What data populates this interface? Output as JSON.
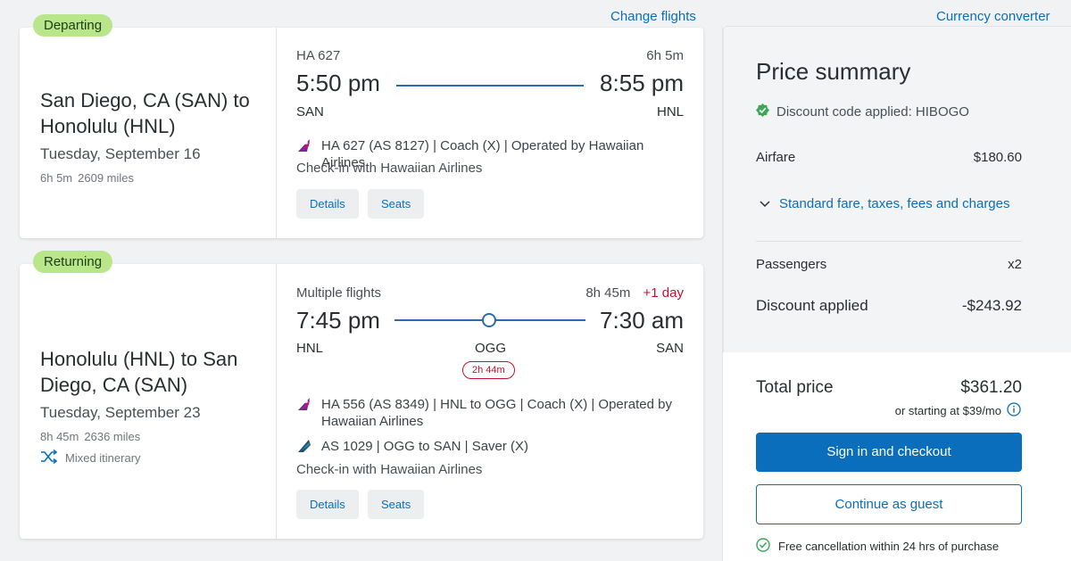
{
  "links": {
    "change_flights": "Change flights",
    "currency_converter": "Currency converter"
  },
  "departing": {
    "pill": "Departing",
    "route": "San Diego, CA (SAN) to Honolulu (HNL)",
    "date": "Tuesday, September 16",
    "duration": "6h 5m",
    "miles": "2609 miles",
    "flight_label": "HA 627",
    "total_duration": "6h 5m",
    "depart_time": "5:50 pm",
    "arrive_time": "8:55 pm",
    "origin": "SAN",
    "destination": "HNL",
    "segment": "HA 627 (AS 8127) | Coach (X) | Operated by Hawaiian Airlines",
    "checkin": "Check-in with Hawaiian Airlines",
    "details_btn": "Details",
    "seats_btn": "Seats"
  },
  "returning": {
    "pill": "Returning",
    "route": "Honolulu (HNL) to San Diego, CA (SAN)",
    "date": "Tuesday, September 23",
    "duration": "8h 45m",
    "miles": "2636 miles",
    "mixed": "Mixed itinerary",
    "flight_label": "Multiple flights",
    "total_duration": "8h 45m",
    "plus_day": "+1 day",
    "depart_time": "7:45 pm",
    "arrive_time": "7:30 am",
    "origin": "HNL",
    "stop": "OGG",
    "destination": "SAN",
    "layover": "2h 44m",
    "segment1": "HA 556 (AS 8349) | HNL to OGG | Coach (X) | Operated by Hawaiian Airlines",
    "segment2": "AS 1029 | OGG to SAN | Saver (X)",
    "checkin": "Check-in with Hawaiian Airlines",
    "details_btn": "Details",
    "seats_btn": "Seats"
  },
  "summary": {
    "title": "Price summary",
    "discount_code": "Discount code applied: HIBOGO",
    "airfare_label": "Airfare",
    "airfare_value": "$180.60",
    "fare_toggle": "Standard fare, taxes, fees and charges",
    "passengers_label": "Passengers",
    "passengers_value": "x2",
    "discount_label": "Discount applied",
    "discount_value": "-$243.92",
    "total_label": "Total price",
    "total_value": "$361.20",
    "financing": "or starting at $39/mo",
    "signin_btn": "Sign in and checkout",
    "guest_btn": "Continue as guest",
    "free_cancel": "Free cancellation within 24 hrs of purchase"
  },
  "colors": {
    "accent": "#0a6ebd",
    "pill": "#b9e58b",
    "red": "#c8102e",
    "success": "#3aa757"
  },
  "icons": {
    "hawaiian_logo": "hawaiian-airlines-logo-icon",
    "alaska_logo": "alaska-airlines-logo-icon",
    "shuffle": "shuffle-icon",
    "check": "check-circle-icon",
    "info": "info-icon",
    "chevron": "chevron-down-icon"
  }
}
